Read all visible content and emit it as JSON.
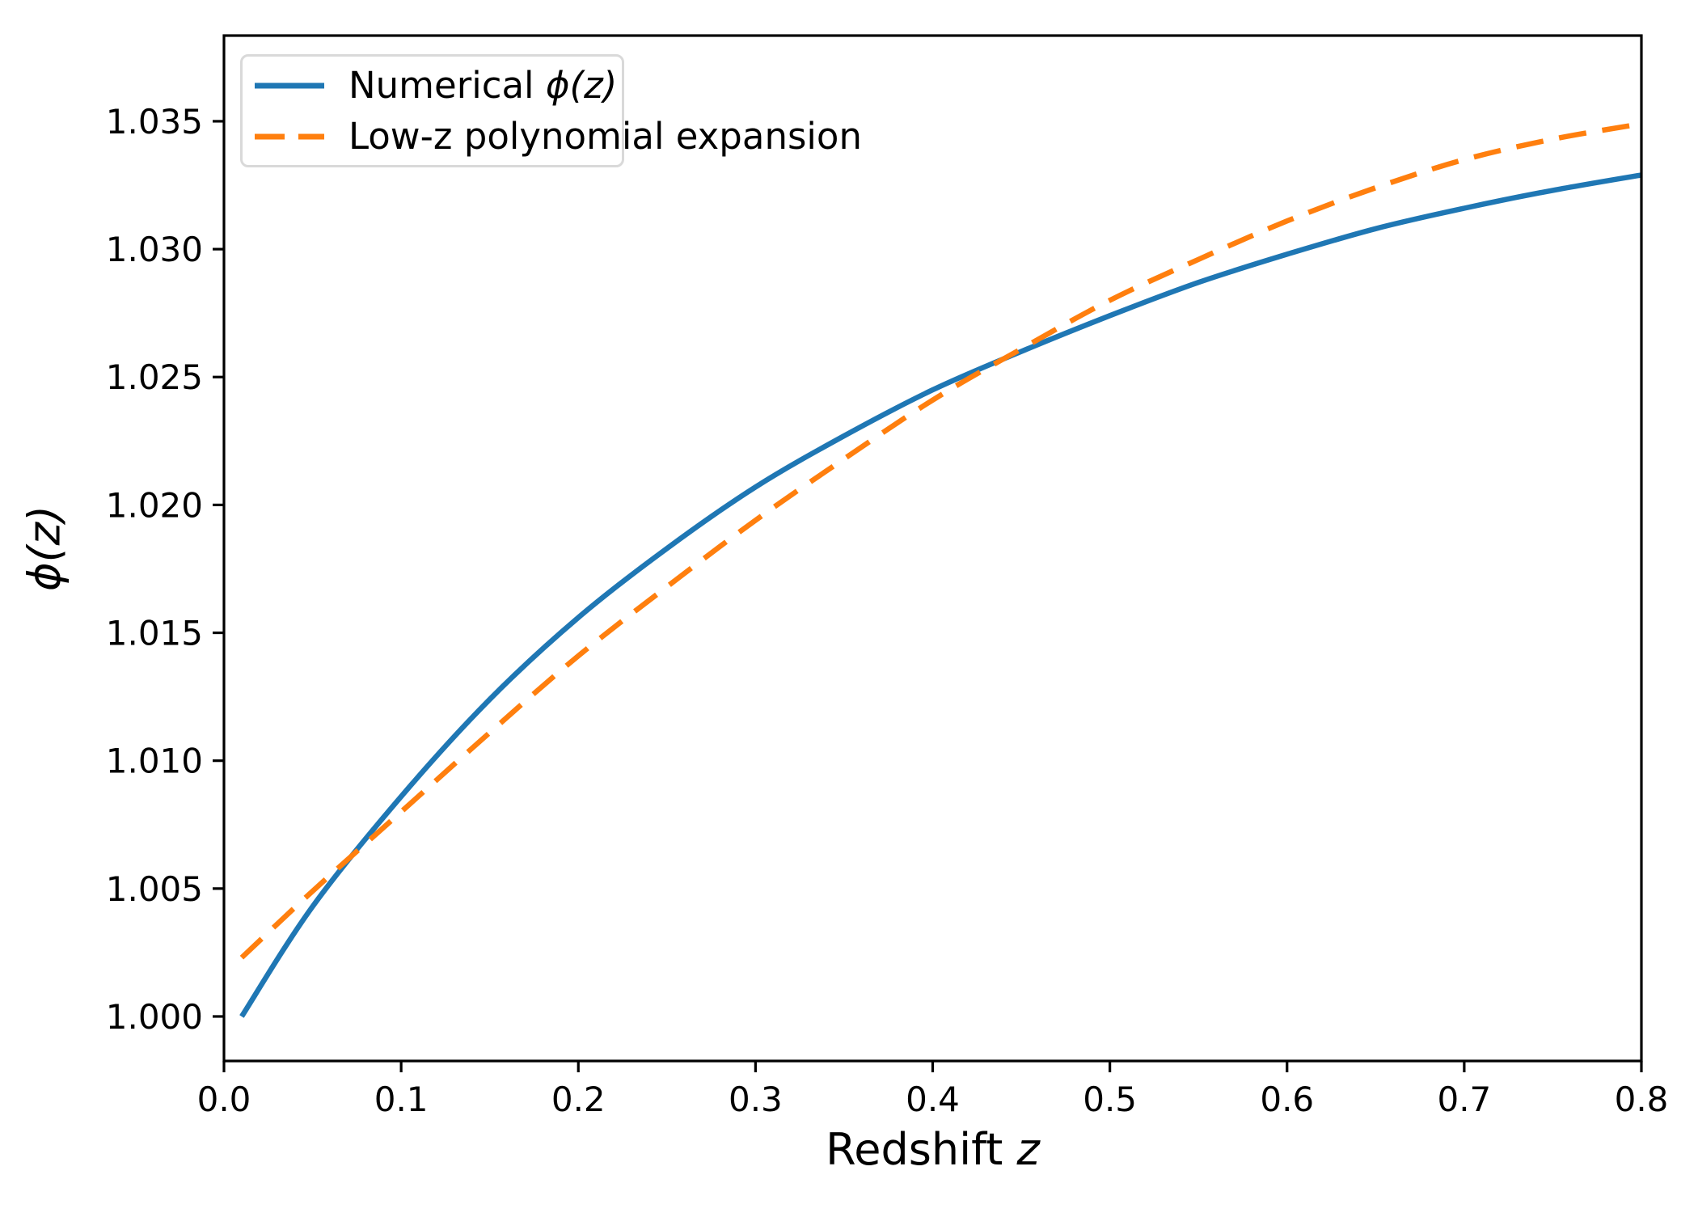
{
  "figure": {
    "background": "#ffffff",
    "spine_color": "#000000",
    "tick_color": "#000000"
  },
  "axes": {
    "xlabel": {
      "text": "Redshift ",
      "math": "z"
    },
    "ylabel": {
      "math": "ϕ(z)"
    },
    "x_tick_labels": [
      "0.0",
      "0.1",
      "0.2",
      "0.3",
      "0.4",
      "0.5",
      "0.6",
      "0.7",
      "0.8"
    ],
    "y_tick_labels": [
      "1.000",
      "1.005",
      "1.010",
      "1.015",
      "1.020",
      "1.025",
      "1.030",
      "1.035"
    ]
  },
  "legend": {
    "items": [
      {
        "prefix": "Numerical ",
        "math": "ϕ(z)",
        "swatch": "solid-line",
        "color": "#1f77b4"
      },
      {
        "prefix": "Low-z polynomial expansion",
        "math": "",
        "swatch": "dashed-line",
        "color": "#ff7f0e"
      }
    ]
  },
  "chart_data": {
    "type": "line",
    "title": "",
    "xlabel": "Redshift z",
    "ylabel": "ϕ(z)",
    "xlim": [
      0.0,
      0.8
    ],
    "ylim": [
      0.99826,
      1.03835
    ],
    "x_ticks": [
      0.0,
      0.1,
      0.2,
      0.3,
      0.4,
      0.5,
      0.6,
      0.7,
      0.8
    ],
    "y_ticks": [
      1.0,
      1.005,
      1.01,
      1.015,
      1.02,
      1.025,
      1.03,
      1.035
    ],
    "grid": false,
    "legend_position": "upper left",
    "series": [
      {
        "name": "Numerical ϕ(z)",
        "color": "#1f77b4",
        "style": "solid",
        "linewidth": 6.5,
        "x": [
          0.01,
          0.05,
          0.1,
          0.15,
          0.2,
          0.25,
          0.3,
          0.35,
          0.4,
          0.45,
          0.5,
          0.55,
          0.6,
          0.65,
          0.7,
          0.75,
          0.8
        ],
        "y": [
          1.0,
          1.0043,
          1.0086,
          1.0124,
          1.0156,
          1.0183,
          1.0207,
          1.0227,
          1.0245,
          1.026,
          1.0274,
          1.0287,
          1.0298,
          1.0308,
          1.0316,
          1.0323,
          1.0329
        ]
      },
      {
        "name": "Low-z polynomial expansion",
        "color": "#ff7f0e",
        "style": "dashed",
        "linewidth": 6.5,
        "x": [
          0.01,
          0.05,
          0.1,
          0.15,
          0.2,
          0.25,
          0.3,
          0.35,
          0.4,
          0.45,
          0.5,
          0.55,
          0.6,
          0.65,
          0.7,
          0.75,
          0.8
        ],
        "y": [
          1.0023,
          1.0049,
          1.008,
          1.0111,
          1.0141,
          1.0168,
          1.0194,
          1.0218,
          1.0241,
          1.0261,
          1.028,
          1.0296,
          1.0311,
          1.0324,
          1.0335,
          1.0343,
          1.0349
        ]
      }
    ]
  }
}
